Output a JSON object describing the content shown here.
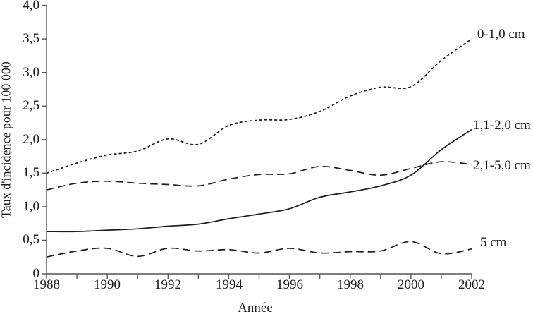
{
  "figure": {
    "background": "#ffffff",
    "axis_color": "#555555",
    "line_color": "#1c1c1c",
    "text_color": "#1c1c1c"
  },
  "chart_data": {
    "type": "line",
    "title": "",
    "xlabel": "Année",
    "ylabel": "Taux d'incidence pour 100 000",
    "x": [
      1988,
      1989,
      1990,
      1991,
      1992,
      1993,
      1994,
      1995,
      1996,
      1997,
      1998,
      1999,
      2000,
      2001,
      2002
    ],
    "xlim": [
      1988,
      2002
    ],
    "ylim": [
      0,
      4.0
    ],
    "grid": false,
    "legend_position": "labels-at-line-ends-right",
    "xtick_labels": [
      "1988",
      "1990",
      "1992",
      "1994",
      "1996",
      "1998",
      "2000",
      "2002"
    ],
    "ytick_labels": [
      "4,0",
      "3,5",
      "3,0",
      "2,5",
      "2,0",
      "1,5",
      "1,0",
      "0,5",
      "0"
    ],
    "series": [
      {
        "name": "0-1,0 cm",
        "line_style": "dotted",
        "values": [
          1.5,
          1.65,
          1.77,
          1.83,
          2.01,
          1.93,
          2.21,
          2.29,
          2.3,
          2.42,
          2.65,
          2.78,
          2.79,
          3.18,
          3.5
        ]
      },
      {
        "name": "1,1-2,0 cm",
        "line_style": "solid",
        "values": [
          0.63,
          0.63,
          0.65,
          0.67,
          0.71,
          0.74,
          0.82,
          0.89,
          0.97,
          1.14,
          1.22,
          1.31,
          1.47,
          1.85,
          2.15
        ]
      },
      {
        "name": "2,1-5,0 cm",
        "line_style": "dashed",
        "values": [
          1.25,
          1.35,
          1.38,
          1.35,
          1.33,
          1.31,
          1.41,
          1.48,
          1.49,
          1.6,
          1.54,
          1.47,
          1.57,
          1.67,
          1.63
        ]
      },
      {
        "name": "5 cm",
        "line_style": "dashed",
        "values": [
          0.25,
          0.34,
          0.38,
          0.26,
          0.38,
          0.34,
          0.36,
          0.31,
          0.38,
          0.31,
          0.33,
          0.34,
          0.48,
          0.3,
          0.37
        ]
      }
    ]
  }
}
